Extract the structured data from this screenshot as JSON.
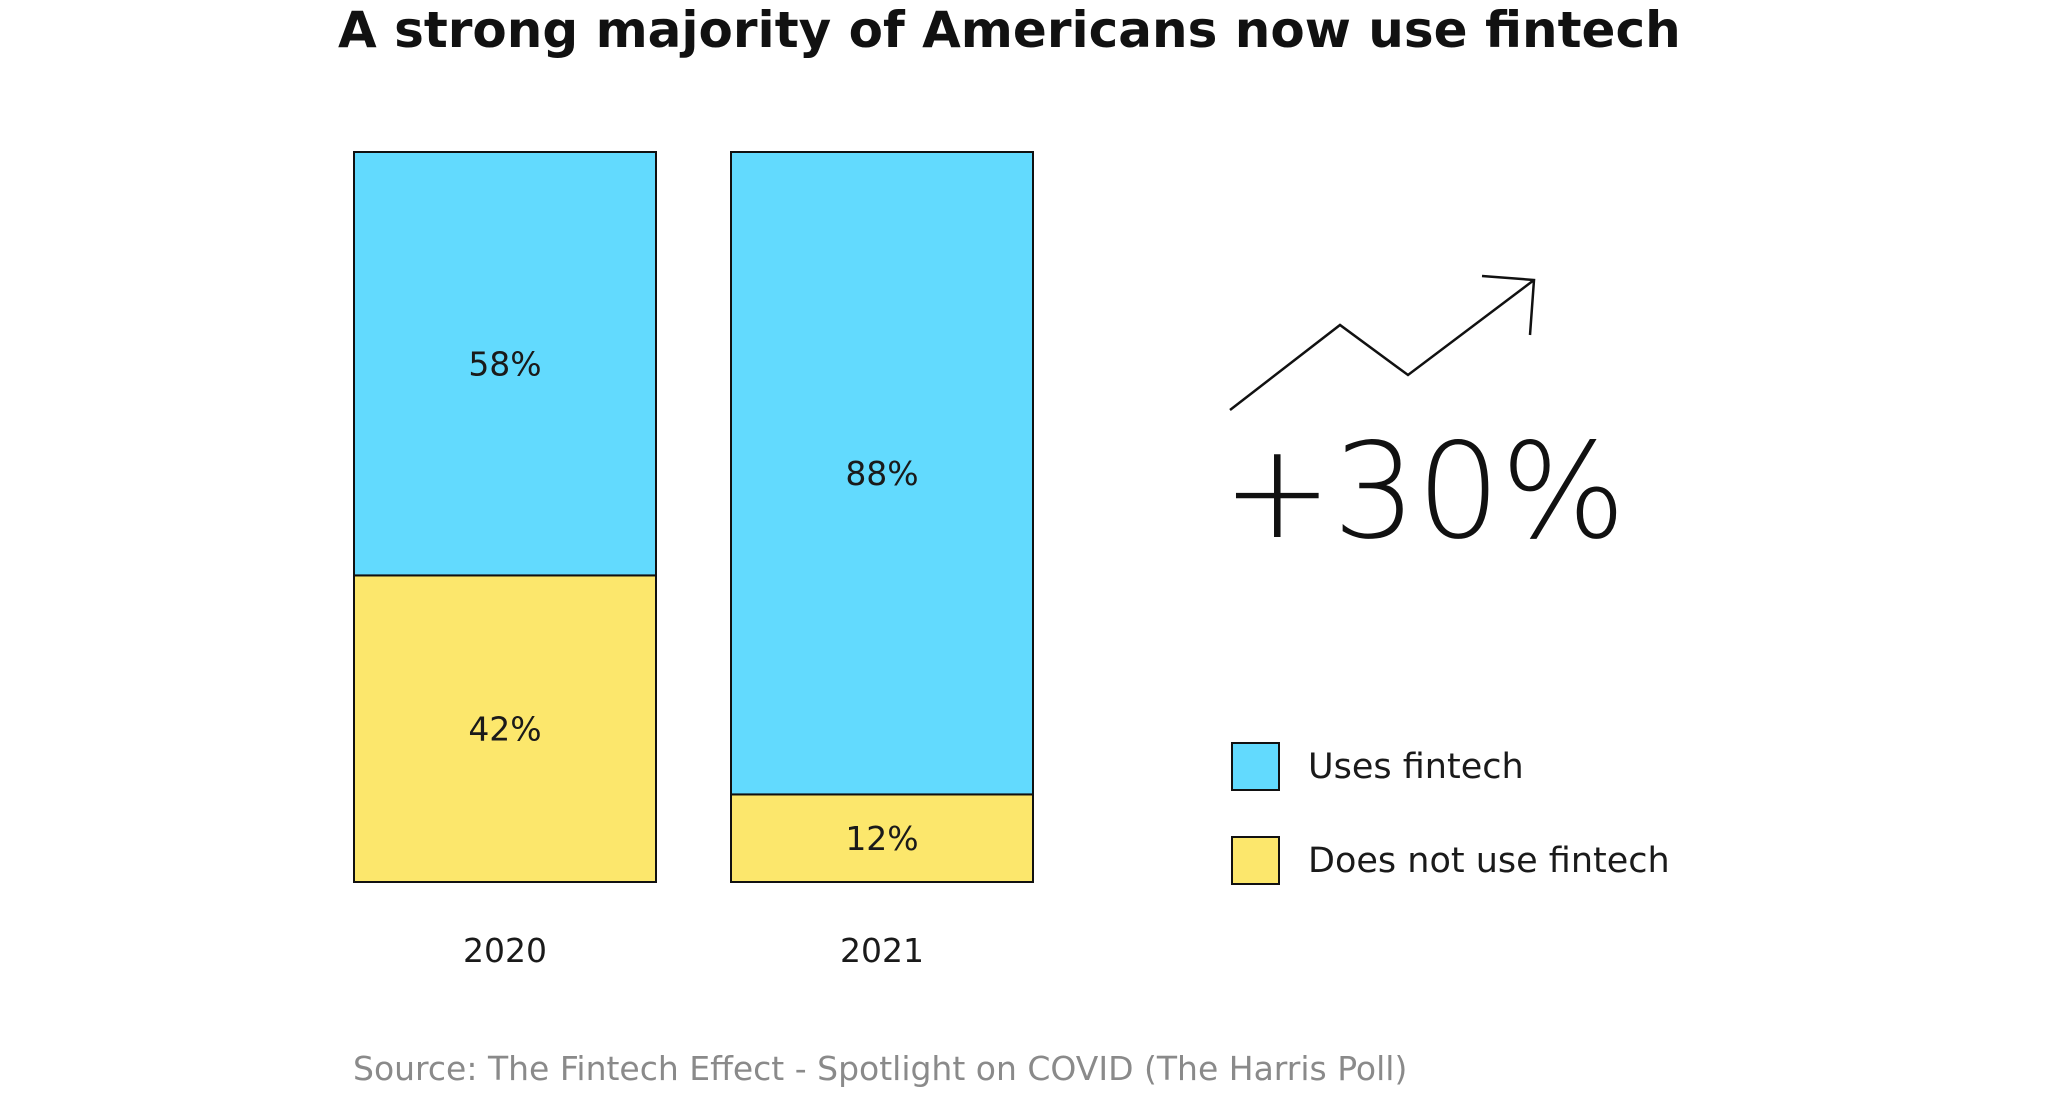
{
  "chart_data": {
    "type": "bar",
    "stacked": true,
    "normalized_percent": true,
    "title": "A strong majority of Americans now use fintech",
    "categories": [
      "2020",
      "2021"
    ],
    "series": [
      {
        "name": "Uses fintech",
        "values": [
          58,
          88
        ],
        "labels": [
          "58%",
          "88%"
        ],
        "color": "#62dafe"
      },
      {
        "name": "Does not use fintech",
        "values": [
          42,
          12
        ],
        "labels": [
          "42%",
          "12%"
        ],
        "color": "#fce76c"
      }
    ],
    "ylim": [
      0,
      100
    ],
    "grid": false,
    "legend_position": "right",
    "annotation": "+30%",
    "source": "Source: The Fintech Effect - Spotlight on COVID (The Harris Poll)"
  },
  "icons": {
    "trend": "trending-up-arrow-icon"
  }
}
